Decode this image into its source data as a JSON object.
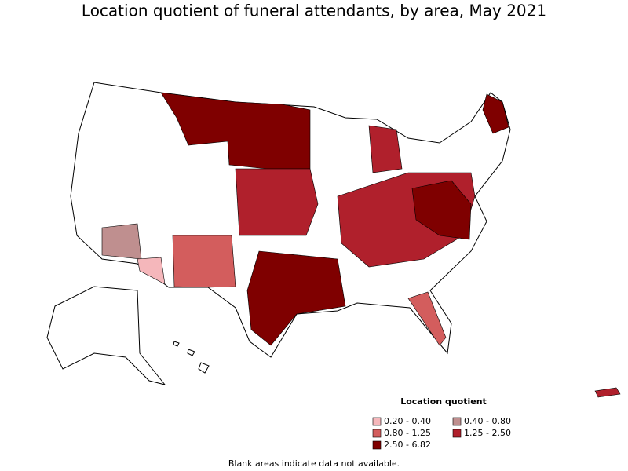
{
  "title": "Location quotient of funeral attendants, by area, May 2021",
  "legend": {
    "title": "Location quotient",
    "items": [
      {
        "label": "0.20 - 0.40",
        "color": "#f5b7bb"
      },
      {
        "label": "0.40 - 0.80",
        "color": "#bf8f8f"
      },
      {
        "label": "0.80 - 1.25",
        "color": "#d35d5d"
      },
      {
        "label": "1.25 - 2.50",
        "color": "#b0202c"
      },
      {
        "label": "2.50 - 6.82",
        "color": "#7f0000"
      }
    ]
  },
  "footnote": "Blank areas indicate data not available."
}
